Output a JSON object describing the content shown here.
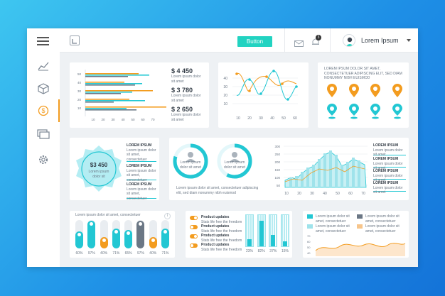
{
  "header": {
    "button_label": "Button",
    "user_name": "Lorem Ipsum",
    "bell_count": "3"
  },
  "bar_card": {
    "axis_y": [
      "50",
      "40",
      "30",
      "20",
      "10"
    ],
    "axis_x": [
      "10",
      "20",
      "30",
      "40",
      "50",
      "60",
      "70"
    ],
    "stats": [
      {
        "value": "$ 4 450",
        "text": "Lorem ipsum dolor sit amet"
      },
      {
        "value": "$ 3 780",
        "text": "Lorem ipsum dolor sit amet"
      },
      {
        "value": "$ 2 650",
        "text": "Lorem ipsum dolor sit amet"
      }
    ]
  },
  "line_card": {
    "axis_y": [
      "40",
      "30",
      "20",
      "10"
    ],
    "axis_x": [
      "10",
      "20",
      "30",
      "40",
      "50",
      "60"
    ]
  },
  "pin_card": {
    "text": "LOREM IPSUM DOLOR SIT AMET, CONSECTETUER ADIPISCING ELIT, SED DIAM NONUMMY NIBH EUISMOD"
  },
  "badge_card": {
    "value": "$3 450",
    "text": "Lorem ipsum dolor sit",
    "items": [
      {
        "title": "LOREM IPSUM",
        "text": "Lorem ipsum dolor sit amet, consectetuer"
      },
      {
        "title": "LOREM IPSUM",
        "text": "Lorem ipsum dolor sit amet, consectetuer"
      },
      {
        "title": "LOREM IPSUM",
        "text": "Lorem ipsum dolor sit amet, consectetuer"
      }
    ]
  },
  "donut_card": {
    "text": "Lorem ipsum dolor sit amet, consectetuer adipiscing elit, sed diam nonummy nibh euismod",
    "donuts": [
      {
        "text": "Lorem ipsum dolor sit amet"
      },
      {
        "text": "Lorem ipsum dolor sit amet"
      }
    ]
  },
  "area_card": {
    "axis_y": [
      "300",
      "250",
      "200",
      "150",
      "100",
      "50"
    ],
    "axis_x": [
      "10",
      "20",
      "30",
      "40",
      "50",
      "60",
      "70"
    ],
    "items": [
      {
        "title": "LOREM IPSUM",
        "text": "Lorem ipsum dolor sit amet"
      },
      {
        "title": "LOREM IPSUM",
        "text": "Lorem ipsum dolor sit amet"
      },
      {
        "title": "LOREM IPSUM",
        "text": "Lorem ipsum dolor sit amet"
      },
      {
        "title": "LOREM IPSUM",
        "text": "Lorem ipsum dolor sit amet"
      }
    ]
  },
  "pill_card": {
    "title": "Lorem ipsum dolor sit amet, consectetuer",
    "percents": [
      "60%",
      "97%",
      "40%",
      "71%",
      "65%",
      "97%",
      "40%",
      "71%"
    ],
    "levels": [
      0.6,
      0.97,
      0.4,
      0.71,
      0.65,
      0.97,
      0.4,
      0.71
    ]
  },
  "updates_card": {
    "items": [
      {
        "title": "Product updates",
        "text": "Stats life free the freedom"
      },
      {
        "title": "Product updates",
        "text": "Stats life free the freedom"
      },
      {
        "title": "Product updates",
        "text": "Stats life free the freedom"
      },
      {
        "title": "Product updates",
        "text": "Stats life free the freedom"
      }
    ],
    "percents": [
      "23%",
      "82%",
      "37%",
      "15%"
    ],
    "levels": [
      0.23,
      0.82,
      0.37,
      0.15
    ]
  },
  "legend_card": {
    "items": [
      {
        "text": "Lorem ipsum dolor sit amet, consectetuer"
      },
      {
        "text": "Lorem ipsum dolor sit amet, consectetuer"
      },
      {
        "text": "Lorem ipsum dolor sit amet, consectetuer"
      },
      {
        "text": "Lorem ipsum dolor sit amet, consectetuer"
      }
    ],
    "axis_y": [
      "70",
      "60",
      "50",
      "40"
    ]
  }
}
